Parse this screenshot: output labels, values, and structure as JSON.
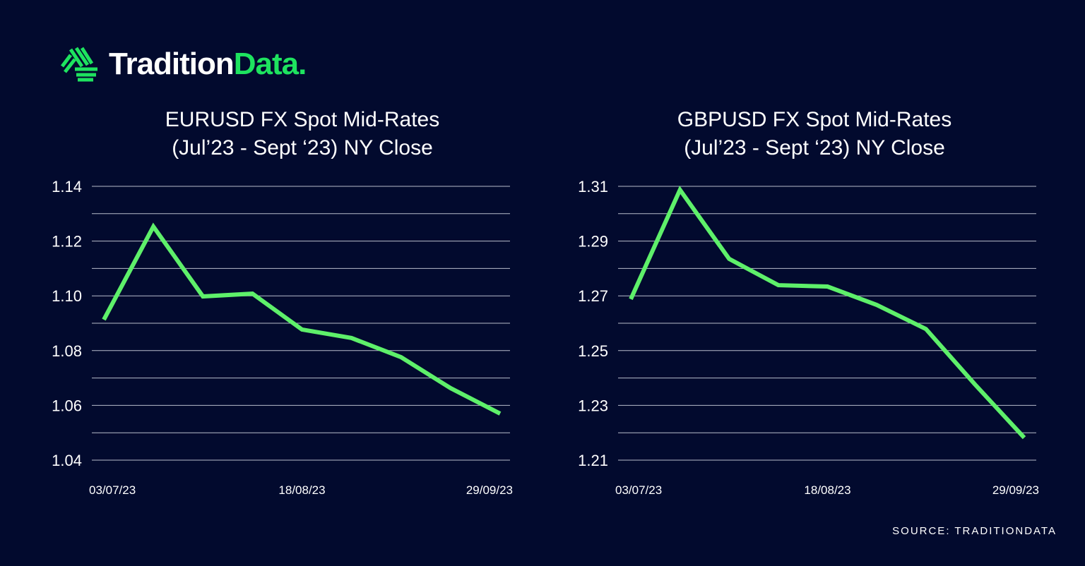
{
  "brand": {
    "name_part1": "Tradition",
    "name_part2": "Data.",
    "accent": "#1ee35f"
  },
  "source": "SOURCE: TRADITIONDATA",
  "line_color": "#5ef06a",
  "chart_data": [
    {
      "type": "line",
      "title": "EURUSD FX Spot Mid-Rates",
      "subtitle": "(Jul’23 - Sept ‘23) NY Close",
      "xlabel": "",
      "ylabel": "",
      "x_tick_labels": [
        "03/07/23",
        "18/08/23",
        "29/09/23"
      ],
      "x_tick_indices": [
        0,
        4,
        8
      ],
      "y_ticks": [
        "1.04",
        "1.06",
        "1.08",
        "1.10",
        "1.12",
        "1.14"
      ],
      "ylim": [
        1.04,
        1.14
      ],
      "grid_step": 0.01,
      "values": [
        1.0913,
        1.1253,
        1.0998,
        1.1008,
        1.0877,
        1.0846,
        1.0776,
        1.0663,
        1.057
      ]
    },
    {
      "type": "line",
      "title": "GBPUSD FX Spot Mid-Rates",
      "subtitle": "(Jul’23 - Sept ‘23) NY Close",
      "xlabel": "",
      "ylabel": "",
      "x_tick_labels": [
        "03/07/23",
        "18/08/23",
        "29/09/23"
      ],
      "x_tick_indices": [
        0,
        4,
        8
      ],
      "y_ticks": [
        "1.21",
        "1.23",
        "1.25",
        "1.27",
        "1.29",
        "1.31"
      ],
      "ylim": [
        1.21,
        1.31
      ],
      "grid_step": 0.01,
      "values": [
        1.2688,
        1.3087,
        1.2835,
        1.2739,
        1.2734,
        1.2667,
        1.2579,
        1.2376,
        1.2182
      ]
    }
  ]
}
